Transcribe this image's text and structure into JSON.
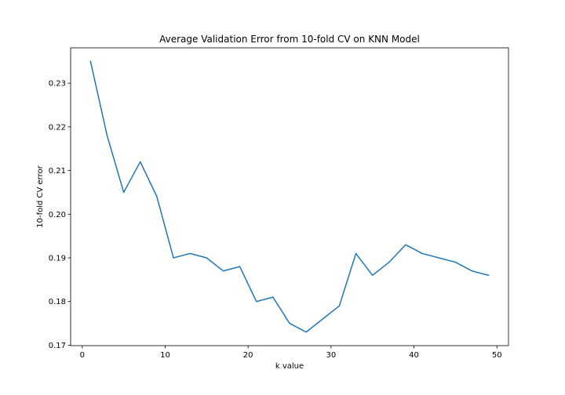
{
  "chart_data": {
    "type": "line",
    "title": "Average Validation Error from 10-fold CV on KNN Model",
    "xlabel": "k value",
    "ylabel": "10-fold CV error",
    "xlim": [
      -1.4,
      51.4
    ],
    "ylim": [
      0.1699,
      0.2381
    ],
    "xticks": [
      0,
      10,
      20,
      30,
      40,
      50
    ],
    "xtick_labels": [
      "0",
      "10",
      "20",
      "30",
      "40",
      "50"
    ],
    "yticks": [
      0.17,
      0.18,
      0.19,
      0.2,
      0.21,
      0.22,
      0.23
    ],
    "ytick_labels": [
      "0.17",
      "0.18",
      "0.19",
      "0.20",
      "0.21",
      "0.22",
      "0.23"
    ],
    "grid": false,
    "series": [
      {
        "color": "#1f77b4",
        "x": [
          1,
          3,
          5,
          7,
          9,
          11,
          13,
          15,
          17,
          19,
          21,
          23,
          25,
          27,
          29,
          31,
          33,
          35,
          37,
          39,
          41,
          43,
          45,
          47,
          49
        ],
        "y": [
          0.235,
          0.218,
          0.205,
          0.212,
          0.204,
          0.19,
          0.191,
          0.19,
          0.187,
          0.188,
          0.18,
          0.181,
          0.175,
          0.173,
          0.176,
          0.179,
          0.191,
          0.186,
          0.189,
          0.193,
          0.191,
          0.19,
          0.189,
          0.187,
          0.186
        ]
      }
    ]
  }
}
